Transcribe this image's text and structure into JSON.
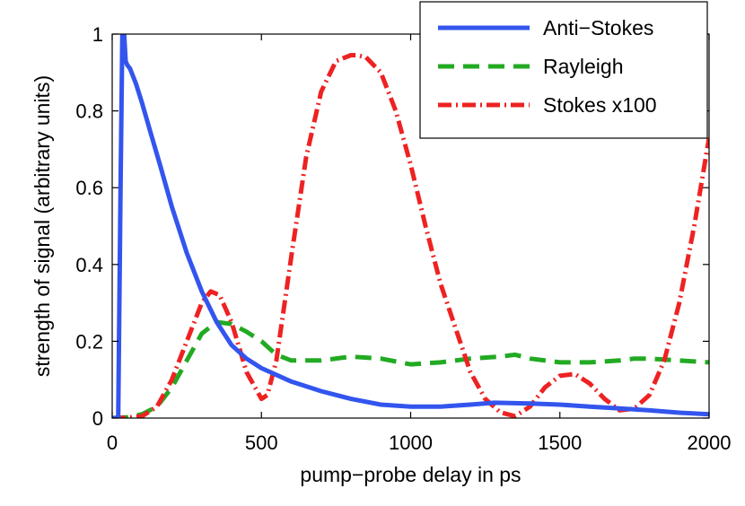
{
  "chart_data": {
    "type": "line",
    "title": "",
    "xlabel": "pump−probe delay in ps",
    "ylabel": "strength of signal (arbitrary units)",
    "xlim": [
      0,
      2000
    ],
    "ylim": [
      0,
      1
    ],
    "xticks": [
      0,
      500,
      1000,
      1500,
      2000
    ],
    "xtick_labels": [
      "0",
      "500",
      "1000",
      "1500",
      "2000"
    ],
    "yticks": [
      0,
      0.2,
      0.4,
      0.6,
      0.8,
      1
    ],
    "ytick_labels": [
      "0",
      "0.2",
      "0.4",
      "0.6",
      "0.8",
      "1"
    ],
    "grid": false,
    "legend_position": "top-right",
    "series": [
      {
        "name": "Anti−Stokes",
        "color": "#3355ee",
        "style": "solid",
        "x": [
          0,
          20,
          28,
          34,
          40,
          45,
          50,
          60,
          80,
          100,
          130,
          160,
          200,
          250,
          300,
          350,
          400,
          450,
          500,
          600,
          700,
          800,
          900,
          1000,
          1100,
          1200,
          1280,
          1400,
          1500,
          1600,
          1700,
          1800,
          1900,
          2000
        ],
        "y": [
          0,
          0,
          0.6,
          1.0,
          1.0,
          0.93,
          0.92,
          0.91,
          0.87,
          0.82,
          0.74,
          0.66,
          0.55,
          0.43,
          0.33,
          0.25,
          0.19,
          0.155,
          0.13,
          0.095,
          0.07,
          0.05,
          0.035,
          0.03,
          0.03,
          0.035,
          0.04,
          0.038,
          0.035,
          0.03,
          0.025,
          0.02,
          0.014,
          0.01
        ]
      },
      {
        "name": "Rayleigh",
        "color": "#22aa22",
        "style": "dashed",
        "x": [
          0,
          50,
          100,
          150,
          200,
          250,
          300,
          350,
          400,
          450,
          500,
          550,
          600,
          700,
          800,
          900,
          1000,
          1100,
          1200,
          1300,
          1350,
          1400,
          1500,
          1600,
          1700,
          1750,
          1800,
          1900,
          2000
        ],
        "y": [
          0,
          0.002,
          0.01,
          0.03,
          0.08,
          0.15,
          0.22,
          0.25,
          0.245,
          0.225,
          0.2,
          0.165,
          0.15,
          0.15,
          0.16,
          0.155,
          0.14,
          0.145,
          0.155,
          0.16,
          0.165,
          0.155,
          0.145,
          0.145,
          0.15,
          0.155,
          0.155,
          0.15,
          0.145
        ]
      },
      {
        "name": "Stokes x100",
        "color": "#ee2222",
        "style": "dashdot",
        "x": [
          0,
          50,
          100,
          150,
          200,
          250,
          300,
          330,
          360,
          400,
          450,
          500,
          520,
          550,
          600,
          650,
          700,
          750,
          800,
          820,
          850,
          900,
          950,
          1000,
          1050,
          1100,
          1200,
          1250,
          1300,
          1350,
          1400,
          1450,
          1500,
          1550,
          1600,
          1650,
          1700,
          1750,
          1800,
          1850,
          1900,
          1950,
          2000
        ],
        "y": [
          0,
          0.001,
          0.005,
          0.03,
          0.1,
          0.2,
          0.3,
          0.33,
          0.32,
          0.25,
          0.12,
          0.05,
          0.06,
          0.15,
          0.42,
          0.68,
          0.85,
          0.93,
          0.945,
          0.945,
          0.94,
          0.9,
          0.8,
          0.66,
          0.5,
          0.35,
          0.12,
          0.05,
          0.015,
          0.005,
          0.03,
          0.08,
          0.11,
          0.115,
          0.09,
          0.05,
          0.02,
          0.025,
          0.06,
          0.15,
          0.3,
          0.5,
          0.73
        ]
      }
    ]
  }
}
